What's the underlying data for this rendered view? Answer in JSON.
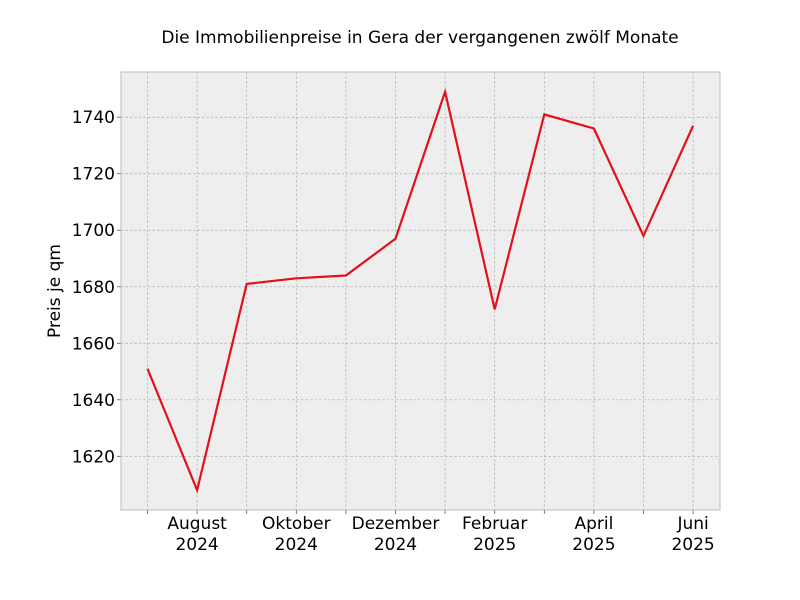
{
  "chart_data": {
    "type": "line",
    "title": "Die Immobilienpreise in Gera der vergangenen zwölf Monate",
    "xlabel": "",
    "ylabel": "Preis je qm",
    "x": [
      "2024-07",
      "2024-08",
      "2024-09",
      "2024-10",
      "2024-11",
      "2024-12",
      "2025-01",
      "2025-02",
      "2025-03",
      "2025-04",
      "2025-05",
      "2025-06"
    ],
    "series": [
      {
        "values": [
          1651,
          1608,
          1681,
          1683,
          1684,
          1697,
          1749,
          1672,
          1741,
          1736,
          1698,
          1737
        ]
      }
    ],
    "ylim": [
      1601,
      1756
    ],
    "yticks": [
      1620,
      1640,
      1660,
      1680,
      1700,
      1720,
      1740
    ],
    "xtick_labels": [
      {
        "month": "August",
        "year": "2024"
      },
      {
        "month": "Oktober",
        "year": "2024"
      },
      {
        "month": "Dezember",
        "year": "2024"
      },
      {
        "month": "Februar",
        "year": "2025"
      },
      {
        "month": "April",
        "year": "2025"
      },
      {
        "month": "Juni",
        "year": "2025"
      }
    ],
    "grid": true,
    "colors": {
      "line": "#e3101c",
      "background": "#eeeeee",
      "grid": "#b0b0b0"
    }
  }
}
